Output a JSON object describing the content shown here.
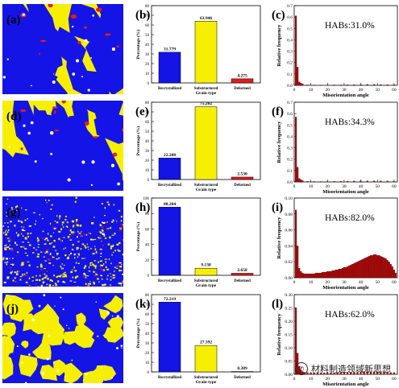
{
  "panel_letters": [
    "(a)",
    "(b)",
    "(c)",
    "(d)",
    "(e)",
    "(f)",
    "(g)",
    "(h)",
    "(i)",
    "(j)",
    "(k)",
    "(l)"
  ],
  "maps": [
    {
      "letter": "(a)",
      "colors": [
        "#f6f000",
        "#1414e6",
        "#e41b1b",
        "#ffffff"
      ],
      "fractions": {
        "yellow": 0.64,
        "blue": 0.32,
        "red": 0.04
      }
    },
    {
      "letter": "(d)",
      "colors": [
        "#f6f000",
        "#1414e6",
        "#e41b1b",
        "#ffffff"
      ],
      "fractions": {
        "yellow": 0.75,
        "blue": 0.22,
        "red": 0.03
      }
    },
    {
      "letter": "(g)",
      "colors": [
        "#1414e6",
        "#f6f000",
        "#e41b1b",
        "#ffffff"
      ],
      "fractions": {
        "blue": 0.88,
        "yellow": 0.09,
        "red": 0.03
      }
    },
    {
      "letter": "(j)",
      "colors": [
        "#1414e6",
        "#f6f000",
        "#ffffff"
      ],
      "fractions": {
        "blue": 0.72,
        "yellow": 0.28
      }
    }
  ],
  "chart_data": [
    {
      "type": "bar",
      "letter": "(b)",
      "categories": [
        "Recrystallized",
        "Substructured",
        "Deformed"
      ],
      "values": [
        31.779,
        63.946,
        4.275
      ],
      "value_labels": [
        "31.779",
        "63.946",
        "4.275"
      ],
      "colors": [
        "#1414e6",
        "#f6f000",
        "#e41b1b"
      ],
      "ylabel": "Percentage (%)",
      "xlabel": "Grain type",
      "ylim": [
        0,
        80
      ],
      "yticks": [
        0,
        10,
        20,
        30,
        40,
        50,
        60,
        70,
        80
      ]
    },
    {
      "type": "bar",
      "letter": "(c)",
      "annotation": "HABs:31.0%",
      "xlabel": "Misorientation angle",
      "ylabel": "Relative frequency",
      "xlim": [
        0,
        62
      ],
      "ylim": [
        0,
        0.7
      ],
      "xticks": [
        0,
        10,
        20,
        30,
        40,
        50,
        60
      ],
      "yticks": [
        0.0,
        0.1,
        0.2,
        0.3,
        0.4,
        0.5,
        0.6,
        0.7
      ],
      "color": "#b00000",
      "x": [
        1,
        2,
        3,
        4,
        5,
        8,
        12,
        16,
        20,
        24,
        28,
        32,
        36,
        40,
        44,
        48,
        52,
        56,
        60
      ],
      "values": [
        0.61,
        0.16,
        0.03,
        0.02,
        0.012,
        0.004,
        0.003,
        0.003,
        0.003,
        0.004,
        0.004,
        0.005,
        0.006,
        0.007,
        0.008,
        0.008,
        0.007,
        0.006,
        0.005
      ]
    },
    {
      "type": "bar",
      "letter": "(e)",
      "categories": [
        "Recrystallized",
        "Substructured",
        "Deformed"
      ],
      "values": [
        22.208,
        75.262,
        2.53
      ],
      "value_labels": [
        "22.208",
        "75.262",
        "2.530"
      ],
      "colors": [
        "#1414e6",
        "#f6f000",
        "#e41b1b"
      ],
      "ylabel": "Percentage (%)",
      "xlabel": "Grain type",
      "ylim": [
        0,
        80
      ],
      "yticks": [
        0,
        10,
        20,
        30,
        40,
        50,
        60,
        70,
        80
      ]
    },
    {
      "type": "bar",
      "letter": "(f)",
      "annotation": "HABs:34.3%",
      "xlabel": "Misorientation angle",
      "ylabel": "Relative frequency",
      "xlim": [
        0,
        62
      ],
      "ylim": [
        0,
        0.7
      ],
      "xticks": [
        0,
        10,
        20,
        30,
        40,
        50,
        60
      ],
      "yticks": [
        0.0,
        0.1,
        0.2,
        0.3,
        0.4,
        0.5,
        0.6,
        0.7
      ],
      "color": "#b00000",
      "x": [
        1,
        2,
        3,
        4,
        5,
        8,
        12,
        16,
        20,
        24,
        28,
        32,
        36,
        40,
        44,
        48,
        52,
        56,
        60
      ],
      "values": [
        0.57,
        0.13,
        0.03,
        0.02,
        0.012,
        0.005,
        0.004,
        0.004,
        0.004,
        0.005,
        0.006,
        0.007,
        0.008,
        0.009,
        0.01,
        0.01,
        0.009,
        0.008,
        0.006
      ]
    },
    {
      "type": "bar",
      "letter": "(h)",
      "categories": [
        "Recrystallized",
        "Substructured",
        "Deformed"
      ],
      "values": [
        88.204,
        9.138,
        2.658
      ],
      "value_labels": [
        "88.204",
        "9.138",
        "2.658"
      ],
      "colors": [
        "#1414e6",
        "#f6f000",
        "#e41b1b"
      ],
      "ylabel": "Percentage (%)",
      "xlabel": "Grain type",
      "ylim": [
        0,
        100
      ],
      "yticks": [
        0,
        20,
        40,
        60,
        80,
        100
      ]
    },
    {
      "type": "bar",
      "letter": "(i)",
      "annotation": "HABs:82.0%",
      "xlabel": "Misorientation angle",
      "ylabel": "Relative frequency",
      "xlim": [
        0,
        62
      ],
      "ylim": [
        0,
        0.1
      ],
      "xticks": [
        0,
        10,
        20,
        30,
        40,
        50,
        60
      ],
      "yticks": [
        0.0,
        0.02,
        0.04,
        0.06,
        0.08,
        0.1
      ],
      "color": "#b00000",
      "x": [
        1,
        2,
        3,
        4,
        5,
        6,
        7,
        8,
        9,
        10,
        11,
        12,
        13,
        14,
        15,
        16,
        17,
        18,
        19,
        20,
        21,
        22,
        23,
        24,
        25,
        26,
        27,
        28,
        29,
        30,
        31,
        32,
        33,
        34,
        35,
        36,
        37,
        38,
        39,
        40,
        41,
        42,
        43,
        44,
        45,
        46,
        47,
        48,
        49,
        50,
        51,
        52,
        53,
        54,
        55,
        56,
        57,
        58,
        59,
        60,
        61
      ],
      "values": [
        0.085,
        0.04,
        0.012,
        0.008,
        0.006,
        0.005,
        0.005,
        0.005,
        0.005,
        0.005,
        0.005,
        0.005,
        0.006,
        0.006,
        0.006,
        0.006,
        0.007,
        0.007,
        0.007,
        0.008,
        0.008,
        0.008,
        0.009,
        0.009,
        0.01,
        0.01,
        0.011,
        0.011,
        0.012,
        0.013,
        0.013,
        0.014,
        0.015,
        0.016,
        0.017,
        0.018,
        0.019,
        0.02,
        0.021,
        0.022,
        0.023,
        0.024,
        0.025,
        0.026,
        0.027,
        0.028,
        0.028,
        0.029,
        0.029,
        0.028,
        0.028,
        0.027,
        0.026,
        0.025,
        0.024,
        0.022,
        0.02,
        0.017,
        0.014,
        0.01,
        0.006
      ]
    },
    {
      "type": "bar",
      "letter": "(k)",
      "categories": [
        "Recrystallized",
        "Substructured",
        "Deformed"
      ],
      "values": [
        72.219,
        27.392,
        0.389
      ],
      "value_labels": [
        "72.219",
        "27.392",
        "0.389"
      ],
      "colors": [
        "#1414e6",
        "#f6f000",
        "#e41b1b"
      ],
      "ylabel": "Percentage (%)",
      "xlabel": "Grain type",
      "ylim": [
        0,
        80
      ],
      "yticks": [
        0,
        10,
        20,
        30,
        40,
        50,
        60,
        70,
        80
      ]
    },
    {
      "type": "bar",
      "letter": "(l)",
      "annotation": "HABs:62.0%",
      "xlabel": "Misorientation angle",
      "ylabel": "Relative frequency",
      "xlim": [
        0,
        62
      ],
      "ylim": [
        0,
        0.3
      ],
      "xticks": [
        0,
        10,
        20,
        30,
        40,
        50,
        60
      ],
      "yticks": [
        0.0,
        0.05,
        0.1,
        0.15,
        0.2,
        0.25,
        0.3
      ],
      "color": "#b00000",
      "x": [
        1,
        2,
        3,
        4,
        5,
        6,
        8,
        10,
        12,
        14,
        16,
        18,
        20,
        22,
        24,
        26,
        28,
        30,
        32,
        34,
        36,
        38,
        40,
        42,
        44,
        46,
        48,
        50,
        52,
        54,
        56,
        58,
        60
      ],
      "values": [
        0.25,
        0.08,
        0.03,
        0.015,
        0.01,
        0.008,
        0.007,
        0.006,
        0.006,
        0.006,
        0.006,
        0.006,
        0.006,
        0.006,
        0.006,
        0.007,
        0.007,
        0.007,
        0.008,
        0.008,
        0.008,
        0.009,
        0.009,
        0.01,
        0.01,
        0.01,
        0.01,
        0.01,
        0.009,
        0.009,
        0.008,
        0.007,
        0.005
      ]
    }
  ],
  "watermark": {
    "text": "材料制造领域新思想",
    "logo": "wechat-logo"
  }
}
